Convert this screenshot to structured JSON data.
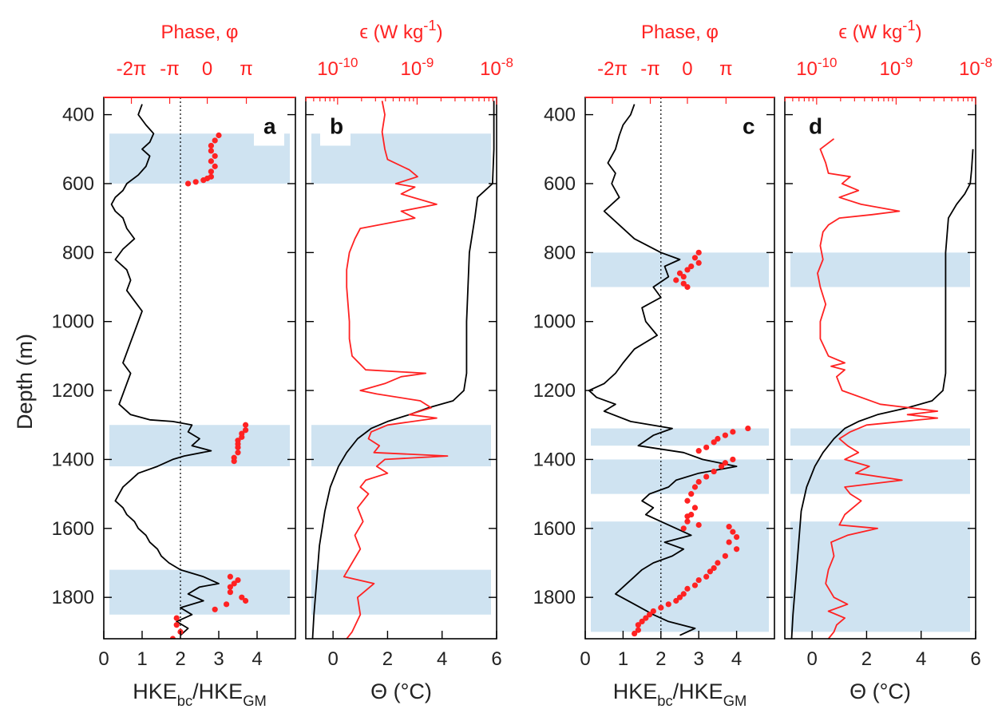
{
  "figure": {
    "ylabel": "Depth (m)",
    "ylim": [
      350,
      1920
    ],
    "yticks": [
      400,
      600,
      800,
      1000,
      1200,
      1400,
      1600,
      1800
    ],
    "colors": {
      "profile": "#000000",
      "red": "#ff2222",
      "band": "#cfe3f1"
    }
  },
  "chart_data": [
    {
      "panel": "a",
      "type": "line",
      "xlabel_bottom": "HKE<sub>bc</sub>/HKE<sub>GM</sub>",
      "xlabel_bottom_text": "HKE_bc/HKE_GM",
      "xlim": [
        0,
        5
      ],
      "xticks": [
        0,
        1,
        2,
        3,
        4
      ],
      "top_axis": {
        "label": "Phase, φ",
        "ticks": [
          "-2π",
          "-π",
          "0",
          "π"
        ]
      },
      "reference_line_x": 2,
      "shaded_bands": [
        [
          455,
          600
        ],
        [
          1300,
          1420
        ],
        [
          1720,
          1850
        ]
      ],
      "series": [
        {
          "kind": "line",
          "color": "#000000",
          "y": [
            370,
            400,
            430,
            455,
            480,
            500,
            520,
            550,
            575,
            600,
            620,
            640,
            660,
            680,
            700,
            730,
            760,
            790,
            820,
            850,
            880,
            910,
            940,
            970,
            1000,
            1030,
            1060,
            1090,
            1120,
            1150,
            1180,
            1210,
            1240,
            1270,
            1285,
            1290,
            1300,
            1320,
            1340,
            1360,
            1375,
            1390,
            1400,
            1420,
            1440,
            1460,
            1480,
            1500,
            1520,
            1540,
            1560,
            1580,
            1600,
            1620,
            1640,
            1660,
            1680,
            1700,
            1720,
            1740,
            1760,
            1770,
            1790,
            1810,
            1830,
            1850,
            1870,
            1890,
            1910
          ],
          "x": [
            1.0,
            0.9,
            1.1,
            1.3,
            1.2,
            1.0,
            1.2,
            1.1,
            0.9,
            0.6,
            0.5,
            0.3,
            0.2,
            0.3,
            0.5,
            0.6,
            0.8,
            0.5,
            0.3,
            0.6,
            0.7,
            0.6,
            0.8,
            1.0,
            0.9,
            0.8,
            0.7,
            0.6,
            0.5,
            0.7,
            0.6,
            0.5,
            0.4,
            0.7,
            1.2,
            1.8,
            2.3,
            2.2,
            2.5,
            2.3,
            2.8,
            2.1,
            1.8,
            1.4,
            0.9,
            0.7,
            0.5,
            0.4,
            0.3,
            0.5,
            0.6,
            0.8,
            0.9,
            1.1,
            1.2,
            1.4,
            1.5,
            1.7,
            2.0,
            2.6,
            3.0,
            2.5,
            2.2,
            2.6,
            2.0,
            2.3,
            1.9,
            2.2,
            2.0
          ]
        },
        {
          "kind": "points",
          "color": "#ff2222",
          "x": [
            3.0,
            2.9,
            2.8,
            2.8,
            2.9,
            2.8,
            2.9,
            2.8,
            2.8,
            2.7,
            2.6,
            2.4,
            2.2,
            3.7,
            3.7,
            3.6,
            3.6,
            3.5,
            3.5,
            3.5,
            3.5,
            3.4,
            3.4,
            3.3,
            3.5,
            3.4,
            3.3,
            3.3,
            3.6,
            3.7,
            3.2,
            2.9,
            1.9,
            1.9,
            2.0,
            1.8
          ],
          "y": [
            460,
            475,
            490,
            505,
            520,
            535,
            550,
            565,
            580,
            585,
            590,
            595,
            600,
            1300,
            1315,
            1325,
            1335,
            1345,
            1355,
            1365,
            1380,
            1395,
            1405,
            1740,
            1750,
            1760,
            1770,
            1785,
            1800,
            1810,
            1820,
            1835,
            1860,
            1880,
            1900,
            1920
          ]
        }
      ]
    },
    {
      "panel": "b",
      "type": "line",
      "xlabel_bottom": "Θ (°C)",
      "xlim": [
        -1,
        6
      ],
      "xticks": [
        0,
        2,
        4,
        6
      ],
      "top_axis": {
        "label": "ϵ (W kg<sup>-1</sup>)",
        "label_text": "ϵ (W kg-1)",
        "ticks": [
          "10-10",
          "10-9",
          "10-8"
        ],
        "log10_range": [
          -10.4,
          -8
        ]
      },
      "shaded_bands": [
        [
          455,
          600
        ],
        [
          1300,
          1420
        ],
        [
          1720,
          1850
        ]
      ],
      "series": [
        {
          "kind": "line",
          "name": "Θ",
          "color": "#000000",
          "y": [
            360,
            500,
            600,
            640,
            700,
            800,
            1000,
            1150,
            1200,
            1230,
            1250,
            1270,
            1290,
            1310,
            1340,
            1380,
            1420,
            1480,
            1550,
            1650,
            1750,
            1850,
            1920
          ],
          "x": [
            5.9,
            5.9,
            5.85,
            5.3,
            5.2,
            5.0,
            4.9,
            4.9,
            4.8,
            4.4,
            3.5,
            2.8,
            2.0,
            1.4,
            0.9,
            0.5,
            0.2,
            -0.1,
            -0.3,
            -0.5,
            -0.6,
            -0.7,
            -0.75
          ]
        },
        {
          "kind": "line",
          "name": "ϵ",
          "color": "#ff2222",
          "y": [
            360,
            400,
            450,
            500,
            530,
            560,
            580,
            600,
            610,
            630,
            660,
            680,
            700,
            730,
            760,
            800,
            850,
            900,
            1000,
            1050,
            1100,
            1140,
            1150,
            1160,
            1180,
            1200,
            1210,
            1230,
            1250,
            1270,
            1280,
            1300,
            1320,
            1340,
            1360,
            1380,
            1390,
            1400,
            1420,
            1440,
            1460,
            1480,
            1500,
            1540,
            1580,
            1620,
            1660,
            1700,
            1740,
            1760,
            1800,
            1850,
            1900,
            1920
          ],
          "x": [
            1.8,
            1.9,
            1.8,
            1.9,
            2.0,
            2.8,
            3.1,
            2.3,
            3.0,
            2.5,
            3.8,
            2.5,
            3.0,
            1.0,
            0.8,
            0.6,
            0.5,
            0.5,
            0.6,
            0.6,
            0.7,
            1.2,
            3.4,
            2.5,
            1.9,
            1.0,
            1.6,
            3.2,
            3.6,
            2.8,
            3.8,
            2.0,
            1.4,
            1.3,
            1.7,
            1.5,
            4.2,
            1.9,
            1.6,
            2.0,
            1.2,
            1.0,
            1.3,
            0.9,
            1.1,
            0.8,
            1.0,
            0.7,
            0.4,
            1.5,
            0.9,
            1.0,
            0.7,
            0.5
          ]
        }
      ]
    },
    {
      "panel": "c",
      "type": "line",
      "xlabel_bottom": "HKE<sub>bc</sub>/HKE<sub>GM</sub>",
      "xlabel_bottom_text": "HKE_bc/HKE_GM",
      "xlim": [
        0,
        5
      ],
      "xticks": [
        0,
        1,
        2,
        3,
        4
      ],
      "top_axis": {
        "label": "Phase, φ",
        "ticks": [
          "-2π",
          "-π",
          "0",
          "π"
        ]
      },
      "reference_line_x": 2,
      "shaded_bands": [
        [
          800,
          900
        ],
        [
          1310,
          1360
        ],
        [
          1400,
          1500
        ],
        [
          1580,
          1900
        ]
      ],
      "series": [
        {
          "kind": "line",
          "color": "#000000",
          "y": [
            370,
            400,
            430,
            460,
            500,
            540,
            570,
            600,
            640,
            680,
            720,
            760,
            800,
            820,
            840,
            870,
            900,
            930,
            960,
            1000,
            1040,
            1080,
            1120,
            1150,
            1180,
            1200,
            1220,
            1240,
            1260,
            1290,
            1310,
            1330,
            1360,
            1380,
            1400,
            1420,
            1440,
            1460,
            1480,
            1500,
            1520,
            1540,
            1560,
            1580,
            1600,
            1620,
            1640,
            1660,
            1680,
            1700,
            1720,
            1740,
            1760,
            1790,
            1820,
            1850,
            1870,
            1890,
            1910
          ],
          "x": [
            1.3,
            1.2,
            1.0,
            0.9,
            0.8,
            0.6,
            0.8,
            0.7,
            0.9,
            0.5,
            0.9,
            1.3,
            2.0,
            2.5,
            2.1,
            2.2,
            1.8,
            2.0,
            1.5,
            1.6,
            1.9,
            1.3,
            1.0,
            0.8,
            0.5,
            0.1,
            0.3,
            0.8,
            0.5,
            1.2,
            2.3,
            1.8,
            1.4,
            2.6,
            3.1,
            4.0,
            3.0,
            2.4,
            2.2,
            1.7,
            1.5,
            1.8,
            1.6,
            2.0,
            2.4,
            2.8,
            2.1,
            2.6,
            2.3,
            1.8,
            1.5,
            1.3,
            1.1,
            0.8,
            1.3,
            1.8,
            2.2,
            2.9,
            2.5
          ]
        },
        {
          "kind": "points",
          "color": "#ff2222",
          "x": [
            3.0,
            2.9,
            3.0,
            2.8,
            2.7,
            2.5,
            2.6,
            2.4,
            2.6,
            2.7,
            4.3,
            3.9,
            3.7,
            3.5,
            3.4,
            3.2,
            3.0,
            3.9,
            3.7,
            3.6,
            3.4,
            3.2,
            3.0,
            2.9,
            2.8,
            2.7,
            2.9,
            2.8,
            2.7,
            2.6,
            2.7,
            3.0,
            3.8,
            3.9,
            4.0,
            3.8,
            4.0,
            3.7,
            3.5,
            3.4,
            3.3,
            3.2,
            3.0,
            2.9,
            2.7,
            2.6,
            2.5,
            2.4,
            2.2,
            2.0,
            1.8,
            1.7,
            1.6,
            1.5,
            1.4,
            1.4,
            1.3
          ],
          "y": [
            800,
            815,
            830,
            840,
            850,
            860,
            870,
            880,
            890,
            900,
            1310,
            1320,
            1330,
            1340,
            1350,
            1365,
            1375,
            1400,
            1410,
            1420,
            1435,
            1450,
            1465,
            1480,
            1500,
            1520,
            1540,
            1560,
            1580,
            1600,
            1565,
            1590,
            1595,
            1610,
            1625,
            1640,
            1660,
            1680,
            1700,
            1715,
            1725,
            1740,
            1750,
            1765,
            1775,
            1790,
            1800,
            1810,
            1820,
            1830,
            1840,
            1850,
            1860,
            1870,
            1880,
            1895,
            1905
          ]
        }
      ]
    },
    {
      "panel": "d",
      "type": "line",
      "xlabel_bottom": "Θ (°C)",
      "xlim": [
        -1,
        6
      ],
      "xticks": [
        0,
        2,
        4,
        6
      ],
      "top_axis": {
        "label": "ϵ (W kg<sup>-1</sup>)",
        "label_text": "ϵ (W kg-1)",
        "ticks": [
          "10-10",
          "10-9",
          "10-8"
        ],
        "log10_range": [
          -10.4,
          -8
        ]
      },
      "shaded_bands": [
        [
          800,
          900
        ],
        [
          1310,
          1360
        ],
        [
          1400,
          1500
        ],
        [
          1580,
          1900
        ]
      ],
      "series": [
        {
          "kind": "line",
          "name": "Θ",
          "color": "#000000",
          "y": [
            500,
            560,
            600,
            630,
            660,
            700,
            800,
            1000,
            1150,
            1200,
            1230,
            1250,
            1270,
            1290,
            1310,
            1340,
            1380,
            1420,
            1480,
            1550,
            1650,
            1750,
            1850,
            1920
          ],
          "x": [
            5.9,
            5.85,
            5.8,
            5.6,
            5.3,
            5.0,
            4.9,
            4.9,
            4.9,
            4.8,
            4.4,
            3.5,
            2.4,
            1.7,
            1.2,
            0.8,
            0.4,
            0.1,
            -0.2,
            -0.4,
            -0.5,
            -0.6,
            -0.7,
            -0.75
          ]
        },
        {
          "kind": "line",
          "name": "ϵ",
          "color": "#ff2222",
          "y": [
            470,
            500,
            540,
            570,
            580,
            600,
            620,
            640,
            660,
            680,
            690,
            700,
            720,
            740,
            780,
            820,
            860,
            900,
            950,
            1000,
            1050,
            1100,
            1120,
            1130,
            1140,
            1160,
            1200,
            1240,
            1260,
            1270,
            1280,
            1300,
            1320,
            1340,
            1360,
            1380,
            1400,
            1420,
            1440,
            1460,
            1480,
            1500,
            1520,
            1560,
            1590,
            1600,
            1620,
            1640,
            1680,
            1720,
            1760,
            1800,
            1820,
            1840,
            1860,
            1880,
            1900,
            1920
          ],
          "x": [
            0.8,
            0.3,
            0.5,
            0.6,
            1.4,
            1.1,
            1.7,
            1.0,
            1.8,
            3.2,
            2.2,
            1.0,
            0.6,
            0.4,
            0.3,
            0.4,
            0.2,
            0.3,
            0.5,
            0.3,
            0.3,
            0.6,
            1.2,
            0.7,
            1.2,
            0.9,
            1.1,
            2.5,
            4.6,
            3.5,
            4.6,
            2.0,
            1.4,
            1.0,
            1.3,
            1.7,
            1.2,
            2.1,
            1.6,
            3.3,
            1.2,
            1.4,
            1.8,
            1.2,
            1.0,
            2.4,
            1.3,
            0.7,
            0.8,
            0.6,
            0.5,
            0.8,
            1.3,
            0.6,
            1.2,
            0.9,
            0.8,
            0.6
          ]
        }
      ]
    }
  ]
}
